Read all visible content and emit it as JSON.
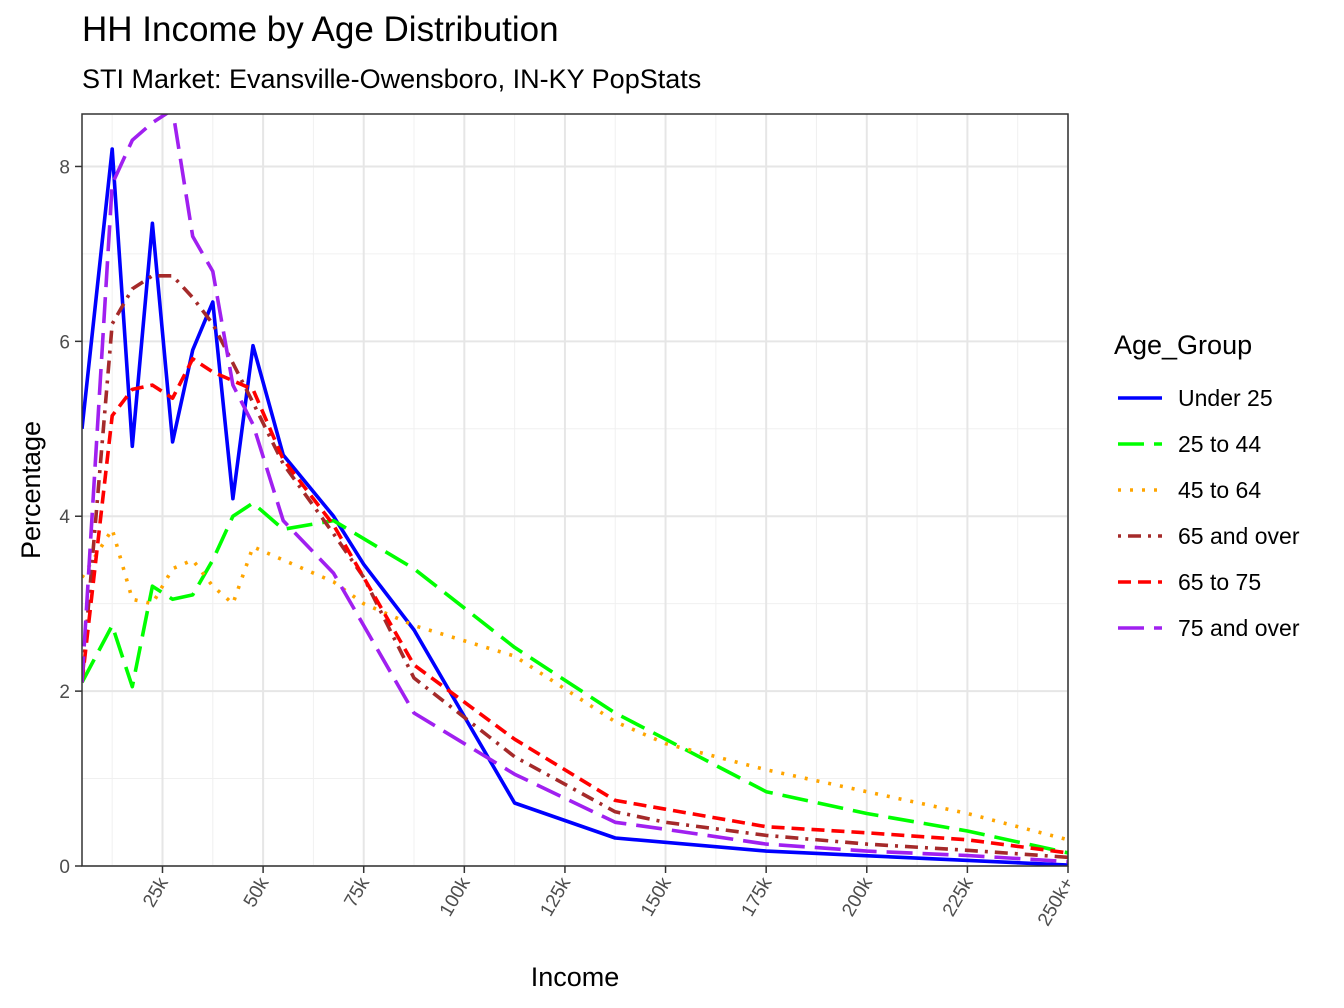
{
  "chart_data": {
    "type": "line",
    "title": "HH Income by Age Distribution",
    "subtitle": "STI Market: Evansville-Owensboro, IN-KY PopStats",
    "xlabel": "Income",
    "ylabel": "Percentage",
    "xlim": [
      5,
      250
    ],
    "ylim": [
      0,
      8.6
    ],
    "x_ticks": [
      {
        "value": 25,
        "label": "25k"
      },
      {
        "value": 50,
        "label": "50k"
      },
      {
        "value": 75,
        "label": "75k"
      },
      {
        "value": 100,
        "label": "100k"
      },
      {
        "value": 125,
        "label": "125k"
      },
      {
        "value": 150,
        "label": "150k"
      },
      {
        "value": 175,
        "label": "175k"
      },
      {
        "value": 200,
        "label": "200k"
      },
      {
        "value": 225,
        "label": "225k"
      },
      {
        "value": 250,
        "label": "250k+"
      }
    ],
    "y_ticks": [
      0,
      2,
      4,
      6,
      8
    ],
    "legend_title": "Age_Group",
    "legend_position": "right",
    "grid": true,
    "series": [
      {
        "name": "Under 25",
        "color": "#0000FF",
        "dash": "solid",
        "points": [
          [
            5,
            5.0
          ],
          [
            12.5,
            8.2
          ],
          [
            17.5,
            4.8
          ],
          [
            22.5,
            7.35
          ],
          [
            27.5,
            4.85
          ],
          [
            32.5,
            5.9
          ],
          [
            37.5,
            6.45
          ],
          [
            42.5,
            4.2
          ],
          [
            47.5,
            5.95
          ],
          [
            55,
            4.7
          ],
          [
            67.5,
            4.0
          ],
          [
            75,
            3.45
          ],
          [
            87.5,
            2.7
          ],
          [
            112.5,
            0.72
          ],
          [
            137.5,
            0.32
          ],
          [
            175,
            0.17
          ],
          [
            250,
            0.01
          ]
        ]
      },
      {
        "name": "25 to 44",
        "color": "#00FF00",
        "dash": "longdash",
        "points": [
          [
            5,
            2.1
          ],
          [
            12.5,
            2.75
          ],
          [
            17.5,
            2.05
          ],
          [
            22.5,
            3.2
          ],
          [
            27.5,
            3.05
          ],
          [
            32.5,
            3.1
          ],
          [
            37.5,
            3.5
          ],
          [
            42.5,
            4.0
          ],
          [
            47.5,
            4.15
          ],
          [
            55,
            3.85
          ],
          [
            67.5,
            3.95
          ],
          [
            87.5,
            3.4
          ],
          [
            112.5,
            2.5
          ],
          [
            137.5,
            1.75
          ],
          [
            150,
            1.45
          ],
          [
            175,
            0.85
          ],
          [
            200,
            0.6
          ],
          [
            225,
            0.4
          ],
          [
            250,
            0.15
          ]
        ]
      },
      {
        "name": "45 to 64",
        "color": "#FFA500",
        "dash": "dotted",
        "points": [
          [
            5,
            3.3
          ],
          [
            12.5,
            3.85
          ],
          [
            17.5,
            3.05
          ],
          [
            22.5,
            3.0
          ],
          [
            27.5,
            3.4
          ],
          [
            32.5,
            3.5
          ],
          [
            37.5,
            3.2
          ],
          [
            42.5,
            3.0
          ],
          [
            47.5,
            3.65
          ],
          [
            55,
            3.5
          ],
          [
            67.5,
            3.25
          ],
          [
            75,
            3.0
          ],
          [
            87.5,
            2.75
          ],
          [
            112.5,
            2.4
          ],
          [
            137.5,
            1.65
          ],
          [
            150,
            1.4
          ],
          [
            175,
            1.1
          ],
          [
            200,
            0.85
          ],
          [
            225,
            0.6
          ],
          [
            250,
            0.3
          ]
        ]
      },
      {
        "name": "65 and over",
        "color": "#A52A2A",
        "dash": "dotdash",
        "points": [
          [
            5,
            2.1
          ],
          [
            12.5,
            6.2
          ],
          [
            17.5,
            6.6
          ],
          [
            22.5,
            6.75
          ],
          [
            27.5,
            6.75
          ],
          [
            32.5,
            6.5
          ],
          [
            37.5,
            6.2
          ],
          [
            42.5,
            5.75
          ],
          [
            47.5,
            5.3
          ],
          [
            55,
            4.6
          ],
          [
            67.5,
            3.8
          ],
          [
            75,
            3.3
          ],
          [
            87.5,
            2.15
          ],
          [
            112.5,
            1.25
          ],
          [
            137.5,
            0.62
          ],
          [
            150,
            0.5
          ],
          [
            175,
            0.35
          ],
          [
            200,
            0.25
          ],
          [
            225,
            0.18
          ],
          [
            250,
            0.1
          ]
        ]
      },
      {
        "name": "65 to 75",
        "color": "#FF0000",
        "dash": "dashed",
        "points": [
          [
            5,
            2.1
          ],
          [
            12.5,
            5.15
          ],
          [
            17.5,
            5.45
          ],
          [
            22.5,
            5.5
          ],
          [
            27.5,
            5.35
          ],
          [
            32.5,
            5.8
          ],
          [
            37.5,
            5.65
          ],
          [
            42.5,
            5.55
          ],
          [
            47.5,
            5.45
          ],
          [
            55,
            4.65
          ],
          [
            67.5,
            3.9
          ],
          [
            75,
            3.3
          ],
          [
            87.5,
            2.3
          ],
          [
            112.5,
            1.45
          ],
          [
            137.5,
            0.75
          ],
          [
            150,
            0.65
          ],
          [
            175,
            0.45
          ],
          [
            200,
            0.38
          ],
          [
            225,
            0.3
          ],
          [
            250,
            0.15
          ]
        ]
      },
      {
        "name": "75 and over",
        "color": "#A020F0",
        "dash": "longdash",
        "points": [
          [
            5,
            2.1
          ],
          [
            12.5,
            7.8
          ],
          [
            17.5,
            8.3
          ],
          [
            22.5,
            8.5
          ],
          [
            27.5,
            8.65
          ],
          [
            32.5,
            7.2
          ],
          [
            37.5,
            6.8
          ],
          [
            42.5,
            5.5
          ],
          [
            47.5,
            5.05
          ],
          [
            55,
            3.95
          ],
          [
            67.5,
            3.35
          ],
          [
            75,
            2.75
          ],
          [
            87.5,
            1.75
          ],
          [
            112.5,
            1.05
          ],
          [
            137.5,
            0.5
          ],
          [
            150,
            0.42
          ],
          [
            175,
            0.25
          ],
          [
            200,
            0.17
          ],
          [
            225,
            0.12
          ],
          [
            250,
            0.05
          ]
        ]
      }
    ]
  }
}
